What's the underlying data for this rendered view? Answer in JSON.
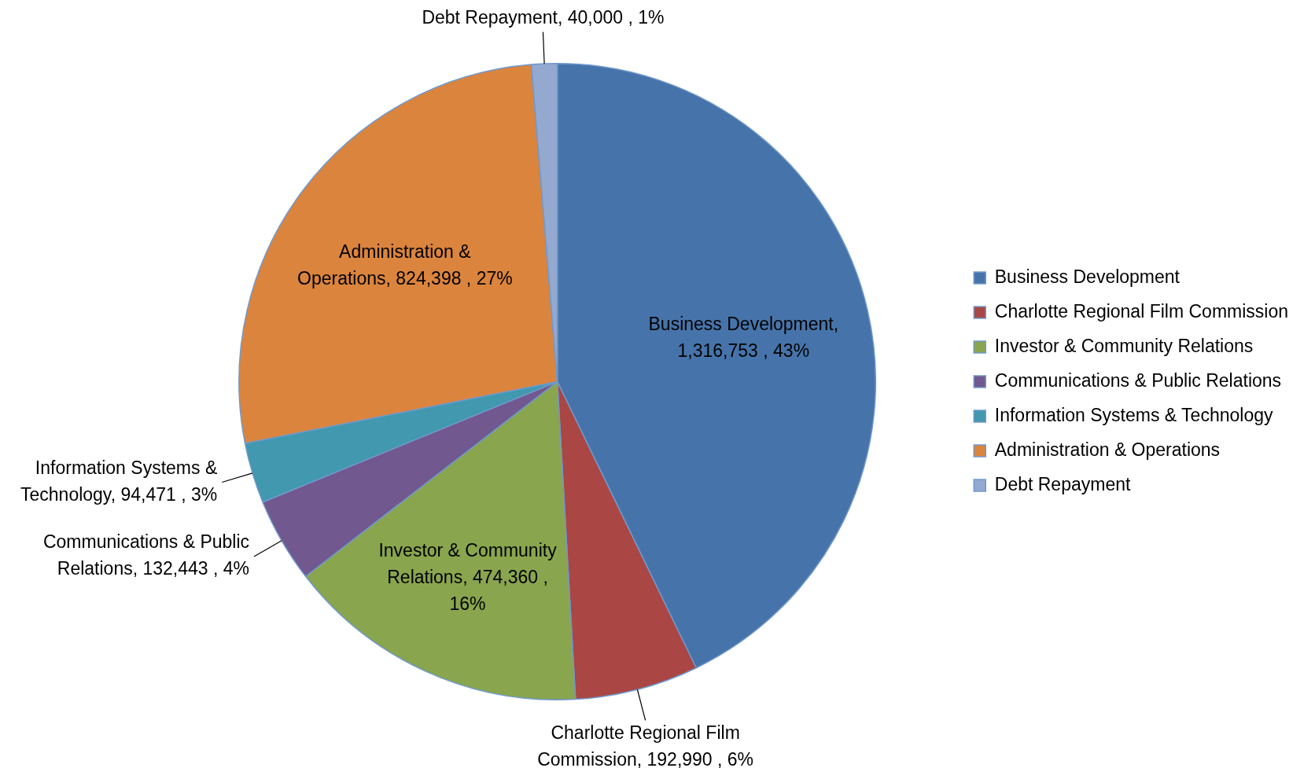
{
  "chart_data": {
    "type": "pie",
    "categories": [
      "Business Development",
      "Charlotte Regional Film Commission",
      "Investor & Community Relations",
      "Communications & Public Relations",
      "Information Systems & Technology",
      "Administration & Operations",
      "Debt Repayment"
    ],
    "values": [
      1316753,
      192990,
      474360,
      132443,
      94471,
      824398,
      40000
    ],
    "colors": [
      "#4674aa",
      "#aa4643",
      "#89a54e",
      "#71588f",
      "#4198af",
      "#db843d",
      "#93a9cf"
    ],
    "value_labels": [
      "Business Development, 1,316,753 , 43%",
      "Charlotte Regional Film Commission, 192,990 , 6%",
      "Investor & Community Relations, 474,360 , 16%",
      "Communications & Public Relations, 132,443 , 4%",
      "Information Systems & Technology, 94,471 , 3%",
      "Administration & Operations, 824,398 , 27%",
      "Debt Repayment, 40,000 , 1%"
    ],
    "legend": "right"
  }
}
